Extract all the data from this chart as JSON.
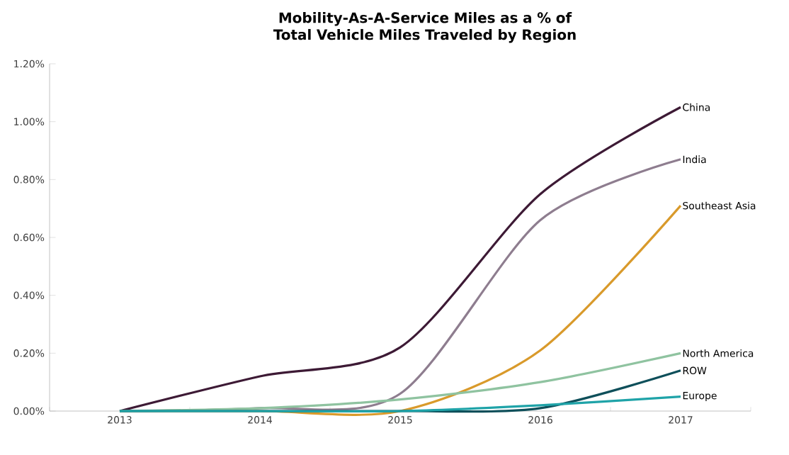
{
  "chart_data": {
    "type": "line",
    "title": "Mobility-As-A-Service Miles as a % of Total Vehicle Miles Traveled by Region",
    "categories": [
      "2013",
      "2014",
      "2015",
      "2016",
      "2017"
    ],
    "series": [
      {
        "name": "China",
        "color": "#3d1a35",
        "values": [
          0,
          0.12,
          0.22,
          0.75,
          1.05
        ]
      },
      {
        "name": "India",
        "color": "#8e7d8f",
        "values": [
          0,
          0.01,
          0.06,
          0.66,
          0.87
        ]
      },
      {
        "name": "Southeast Asia",
        "color": "#d99a2b",
        "values": [
          0,
          0,
          0,
          0.21,
          0.71
        ]
      },
      {
        "name": "North America",
        "color": "#8fc3a0",
        "values": [
          0,
          0.01,
          0.04,
          0.1,
          0.2
        ]
      },
      {
        "name": "ROW",
        "color": "#0e4f5a",
        "values": [
          0,
          0,
          0,
          0.01,
          0.14
        ]
      },
      {
        "name": "Europe",
        "color": "#1fa3a8",
        "values": [
          0,
          0,
          0,
          0.02,
          0.05
        ]
      }
    ],
    "ylim": [
      0,
      1.2
    ],
    "yticks": [
      {
        "value": 0,
        "label": "0.00%"
      },
      {
        "value": 0.2,
        "label": "0.20%"
      },
      {
        "value": 0.4,
        "label": "0.40%"
      },
      {
        "value": 0.6,
        "label": "0.60%"
      },
      {
        "value": 0.8,
        "label": "0.80%"
      },
      {
        "value": 1.0,
        "label": "1.00%"
      },
      {
        "value": 1.2,
        "label": "1.20%"
      }
    ],
    "grid": false,
    "legend": false,
    "marker": "none",
    "line_style": "solid"
  }
}
